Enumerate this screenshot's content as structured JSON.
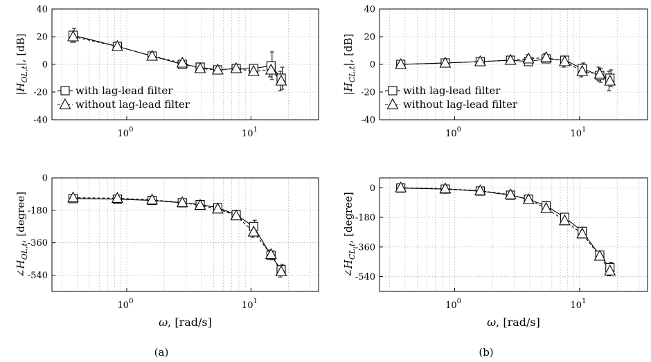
{
  "figure": {
    "caption_a": "(a)",
    "caption_b": "(b)"
  },
  "chart_data": [
    {
      "id": "a-mag",
      "type": "line",
      "xscale": "log",
      "xlim": [
        0.25,
        35
      ],
      "ylim": [
        -40,
        40
      ],
      "yticks": [
        -40,
        -20,
        0,
        20,
        40
      ],
      "ytick_labels": [
        "-40",
        "-20",
        "0",
        "20",
        "40"
      ],
      "xtick_labels": [
        {
          "base": "10",
          "exp": "0"
        },
        {
          "base": "10",
          "exp": "1"
        }
      ],
      "xlabel": "",
      "ylabel": "|H_{OL,t}|, [dB]",
      "grid": true,
      "legend_position": "left-bottom",
      "series": [
        {
          "name": "with lag-lead filter",
          "marker": "square",
          "dash": "solid",
          "x": [
            0.37,
            0.84,
            1.6,
            2.8,
            3.9,
            5.4,
            7.6,
            10.5,
            14.5,
            17.5
          ],
          "y": [
            21,
            13,
            6,
            0,
            -2,
            -4,
            -3,
            -3,
            -1,
            -10
          ],
          "err": [
            5,
            2,
            2,
            2,
            2,
            1,
            2,
            3,
            10,
            8
          ]
        },
        {
          "name": "without lag-lead filter",
          "marker": "triangle",
          "dash": "dashed",
          "x": [
            0.37,
            0.84,
            1.6,
            2.8,
            3.9,
            5.4,
            7.6,
            10.5,
            14.5,
            17.5
          ],
          "y": [
            20,
            13,
            6,
            1,
            -3,
            -4,
            -3,
            -5,
            -4,
            -12
          ],
          "err": [
            4,
            2,
            2,
            2,
            2,
            1,
            2,
            3,
            5,
            7
          ]
        }
      ]
    },
    {
      "id": "b-mag",
      "type": "line",
      "xscale": "log",
      "xlim": [
        0.25,
        35
      ],
      "ylim": [
        -40,
        40
      ],
      "yticks": [
        -40,
        -20,
        0,
        20,
        40
      ],
      "ytick_labels": [
        "-40",
        "-20",
        "0",
        "20",
        "40"
      ],
      "xtick_labels": [
        {
          "base": "10",
          "exp": "0"
        },
        {
          "base": "10",
          "exp": "1"
        }
      ],
      "xlabel": "",
      "ylabel": "|H_{CL,t}|, [dB]",
      "grid": true,
      "legend_position": "left-bottom",
      "series": [
        {
          "name": "with lag-lead filter",
          "marker": "square",
          "dash": "solid",
          "x": [
            0.37,
            0.84,
            1.6,
            2.8,
            3.9,
            5.4,
            7.6,
            10.5,
            14.5,
            17.5
          ],
          "y": [
            0,
            1,
            2,
            3,
            2,
            4,
            3,
            -3,
            -8,
            -10
          ],
          "err": [
            2,
            1,
            2,
            2,
            3,
            3,
            3,
            4,
            5,
            6
          ]
        },
        {
          "name": "without lag-lead filter",
          "marker": "triangle",
          "dash": "dashed",
          "x": [
            0.37,
            0.84,
            1.6,
            2.8,
            3.9,
            5.4,
            7.6,
            10.5,
            14.5,
            17.5
          ],
          "y": [
            0,
            1,
            2,
            3,
            4,
            5,
            2,
            -5,
            -7,
            -12
          ],
          "err": [
            2,
            1,
            2,
            2,
            3,
            3,
            4,
            4,
            5,
            7
          ]
        }
      ]
    },
    {
      "id": "a-phase",
      "type": "line",
      "xscale": "log",
      "xlim": [
        0.25,
        35
      ],
      "ylim": [
        -630,
        0
      ],
      "yticks": [
        0,
        -180,
        -360,
        -540
      ],
      "ytick_labels": [
        "0",
        "-180",
        "-360",
        "-540"
      ],
      "xtick_labels": [
        {
          "base": "10",
          "exp": "0"
        },
        {
          "base": "10",
          "exp": "1"
        }
      ],
      "xlabel": "ω, [rad/s]",
      "ylabel": "∠H_{OL,t}, [degree]",
      "grid": true,
      "series": [
        {
          "name": "with lag-lead filter",
          "marker": "square",
          "dash": "solid",
          "x": [
            0.37,
            0.84,
            1.6,
            2.8,
            3.9,
            5.4,
            7.6,
            10.5,
            14.5,
            17.5
          ],
          "y": [
            -115,
            -118,
            -125,
            -138,
            -148,
            -165,
            -205,
            -270,
            -430,
            -510
          ],
          "err": [
            10,
            10,
            10,
            12,
            12,
            12,
            15,
            35,
            25,
            30
          ]
        },
        {
          "name": "without lag-lead filter",
          "marker": "triangle",
          "dash": "dashed",
          "x": [
            0.37,
            0.84,
            1.6,
            2.8,
            3.9,
            5.4,
            7.6,
            10.5,
            14.5,
            17.5
          ],
          "y": [
            -110,
            -113,
            -122,
            -137,
            -152,
            -172,
            -210,
            -300,
            -425,
            -520
          ],
          "err": [
            10,
            10,
            10,
            12,
            12,
            12,
            15,
            30,
            25,
            30
          ]
        }
      ]
    },
    {
      "id": "b-phase",
      "type": "line",
      "xscale": "log",
      "xlim": [
        0.25,
        35
      ],
      "ylim": [
        -630,
        60
      ],
      "yticks": [
        0,
        -180,
        -360,
        -540
      ],
      "ytick_labels": [
        "0",
        "-180",
        "-360",
        "-540"
      ],
      "xtick_labels": [
        {
          "base": "10",
          "exp": "0"
        },
        {
          "base": "10",
          "exp": "1"
        }
      ],
      "xlabel": "ω, [rad/s]",
      "ylabel": "∠H_{CL,t}, [degree]",
      "grid": true,
      "series": [
        {
          "name": "with lag-lead filter",
          "marker": "square",
          "dash": "solid",
          "x": [
            0.37,
            0.84,
            1.6,
            2.8,
            3.9,
            5.4,
            7.6,
            10.5,
            14.5,
            17.5
          ],
          "y": [
            -2,
            -8,
            -20,
            -45,
            -70,
            -110,
            -180,
            -265,
            -410,
            -485
          ],
          "err": [
            8,
            8,
            10,
            10,
            12,
            15,
            20,
            25,
            25,
            30
          ]
        },
        {
          "name": "without lag-lead filter",
          "marker": "triangle",
          "dash": "dashed",
          "x": [
            0.37,
            0.84,
            1.6,
            2.8,
            3.9,
            5.4,
            7.6,
            10.5,
            14.5,
            17.5
          ],
          "y": [
            0,
            -6,
            -18,
            -42,
            -72,
            -125,
            -200,
            -280,
            -415,
            -505
          ],
          "err": [
            8,
            8,
            10,
            10,
            12,
            15,
            20,
            25,
            25,
            30
          ]
        }
      ]
    }
  ]
}
